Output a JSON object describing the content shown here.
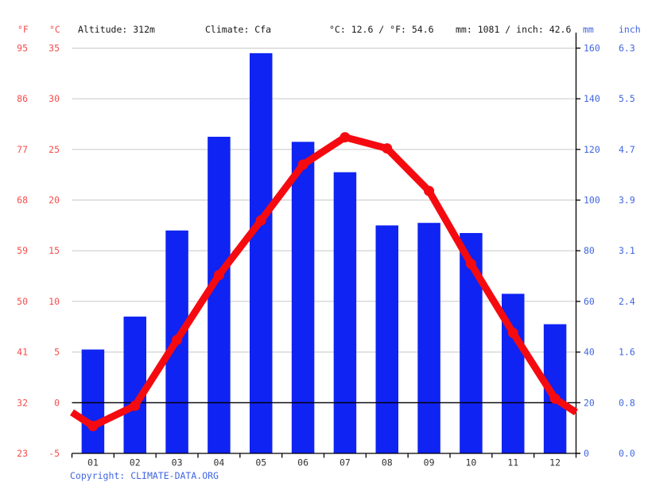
{
  "header": {
    "f_unit": "°F",
    "c_unit": "°C",
    "altitude": "Altitude: 312m",
    "climate": "Climate: Cfa",
    "temp_summary": "°C: 12.6 / °F: 54.6",
    "precip_summary": "mm: 1081 / inch: 42.6",
    "mm_unit": "mm",
    "inch_unit": "inch"
  },
  "footer": {
    "copyright_label": "Copyright:",
    "copyright_link": "CLIMATE-DATA.ORG"
  },
  "colors": {
    "bar_blue": "#0f23f2",
    "line_red": "#f50a10",
    "label_red": "#f74c4c",
    "label_blue": "#4066e0",
    "month_label": "#333333",
    "grid": "#c8c8c8",
    "axis": "#000000"
  },
  "chart_data": {
    "type": "climograph: bar (precipitation) + line (temperature)",
    "title": "Climate graph — Altitude: 312m, Climate: Cfa, °C: 12.6 / °F: 54.6, mm: 1081 / inch: 42.6",
    "categories": [
      "01",
      "02",
      "03",
      "04",
      "05",
      "06",
      "07",
      "08",
      "09",
      "10",
      "11",
      "12"
    ],
    "series": [
      {
        "name": "Precipitation",
        "type": "bar",
        "unit": "mm",
        "values": [
          41,
          54,
          88,
          125,
          158,
          123,
          111,
          90,
          91,
          87,
          63,
          51
        ]
      },
      {
        "name": "Average temperature",
        "type": "line",
        "unit": "°C",
        "values": [
          -2.3,
          -0.3,
          6.2,
          12.6,
          18.0,
          23.5,
          26.2,
          25.1,
          20.9,
          13.7,
          6.9,
          0.4
        ]
      }
    ],
    "axes": {
      "left_fahrenheit": {
        "unit": "°F",
        "ticks": [
          "95",
          "86",
          "77",
          "68",
          "59",
          "50",
          "41",
          "32",
          "23"
        ]
      },
      "left_celsius": {
        "unit": "°C",
        "ticks": [
          "35",
          "30",
          "25",
          "20",
          "15",
          "10",
          "5",
          "0",
          "-5"
        ],
        "range": [
          -5,
          35
        ]
      },
      "right_mm": {
        "unit": "mm",
        "ticks": [
          "160",
          "140",
          "120",
          "100",
          "80",
          "60",
          "40",
          "20",
          "0"
        ],
        "range": [
          0,
          160
        ]
      },
      "right_inch": {
        "unit": "inch",
        "ticks": [
          "6.3",
          "5.5",
          "4.7",
          "3.9",
          "3.1",
          "2.4",
          "1.6",
          "0.8",
          "0.0"
        ]
      }
    },
    "grid": true,
    "zero_celsius_line": true,
    "legend_position": "none"
  }
}
